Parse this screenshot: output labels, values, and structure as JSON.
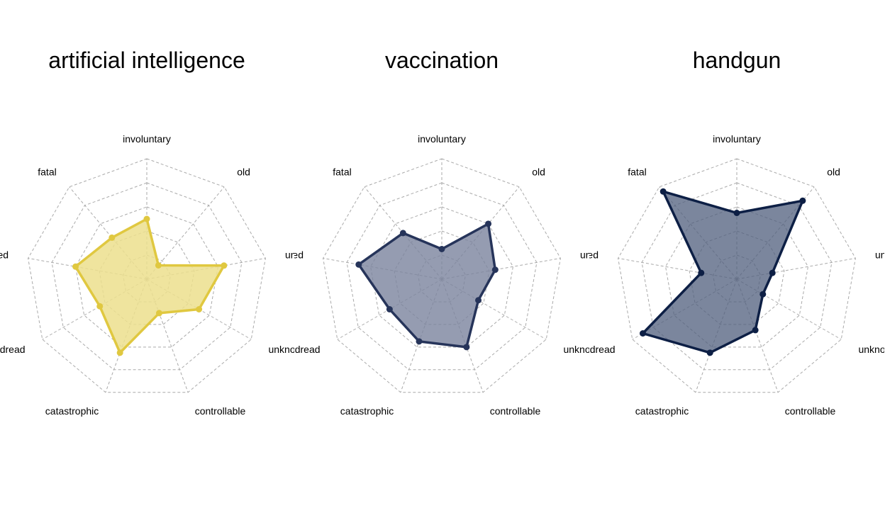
{
  "chart_data": [
    {
      "type": "radar",
      "title": "artificial intelligence",
      "axes": [
        "involuntary",
        "old",
        "unknown_personal",
        "unknown_sci",
        "controllable",
        "catastrophic",
        "dread",
        "delayed",
        "fatal"
      ],
      "values": [
        0.5,
        0.15,
        0.65,
        0.5,
        0.3,
        0.65,
        0.45,
        0.6,
        0.45
      ],
      "rlim": [
        0,
        1
      ],
      "rings": 5,
      "color": "#e0c840",
      "fill": "#ecdf8d",
      "fill_opacity": 0.85
    },
    {
      "type": "radar",
      "title": "vaccination",
      "axes": [
        "involuntary",
        "old",
        "unknown_personal",
        "unknown_sci",
        "controllable",
        "catastrophic",
        "dread",
        "delayed",
        "fatal"
      ],
      "values": [
        0.25,
        0.6,
        0.45,
        0.35,
        0.6,
        0.55,
        0.5,
        0.7,
        0.5
      ],
      "rlim": [
        0,
        1
      ],
      "rings": 5,
      "color": "#26345a",
      "fill": "#7a839e",
      "fill_opacity": 0.8
    },
    {
      "type": "radar",
      "title": "handgun",
      "axes": [
        "involuntary",
        "old",
        "unknown_personal",
        "unknown_sci",
        "controllable",
        "catastrophic",
        "dread",
        "delayed",
        "fatal"
      ],
      "values": [
        0.55,
        0.85,
        0.3,
        0.25,
        0.45,
        0.65,
        0.9,
        0.3,
        0.95
      ],
      "rlim": [
        0,
        1
      ],
      "rings": 5,
      "color": "#0d1f45",
      "fill": "#4f5d7c",
      "fill_opacity": 0.75
    }
  ]
}
